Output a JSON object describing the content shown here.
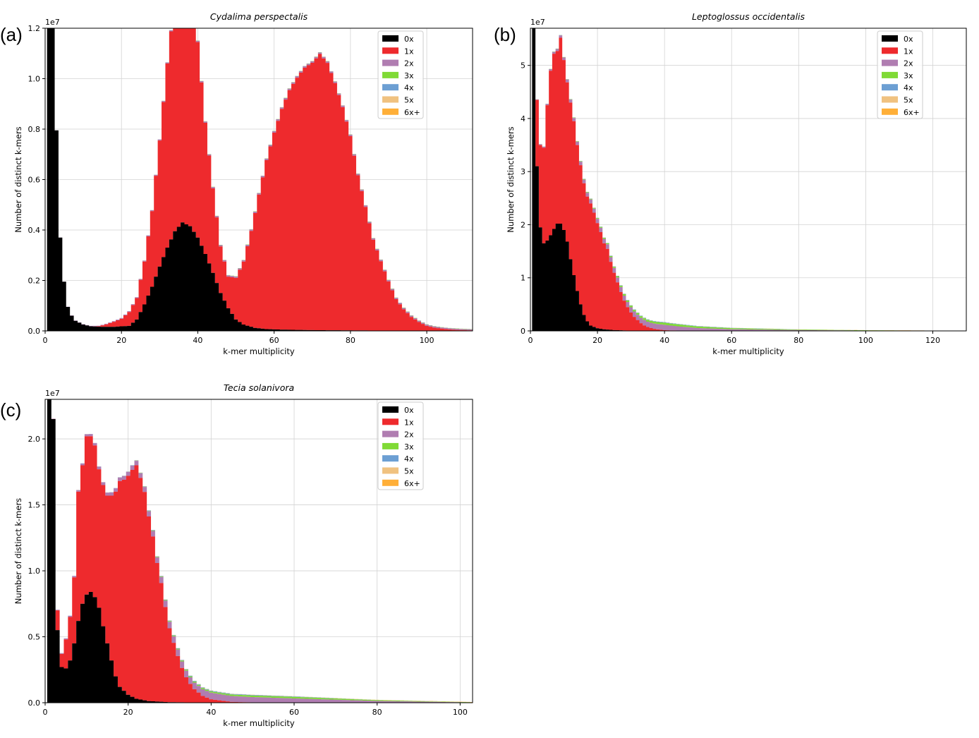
{
  "colors": {
    "layers": [
      "#000000",
      "#ee2a2d",
      "#b07db1",
      "#80da36",
      "#6c9fd3",
      "#f0c280",
      "#ffaf38"
    ],
    "grid": "#d3d3d3"
  },
  "chart_data": [
    {
      "panel_label": "(a)",
      "type": "area",
      "stacked": true,
      "title": "Cydalima perspectalis",
      "xlabel": "k-mer multiplicity",
      "ylabel": "Number of distinct k-mers",
      "y_offset_text": "1e7",
      "xlim": [
        0,
        112
      ],
      "ylim": [
        0,
        1.2
      ],
      "xticks": [
        0,
        20,
        40,
        60,
        80,
        100
      ],
      "xtick_labels": [
        "0",
        "20",
        "40",
        "60",
        "80",
        "100"
      ],
      "yticks": [
        0,
        0.2,
        0.4,
        0.6,
        0.8,
        1.0,
        1.2
      ],
      "ytick_labels": [
        "0.0",
        "0.2",
        "0.4",
        "0.6",
        "0.8",
        "1.0",
        "1.2"
      ],
      "grid": true,
      "legend_position": "top-right",
      "series": [
        {
          "name": "0x",
          "x": [
            1,
            2,
            3,
            4,
            5,
            6,
            7,
            8,
            10,
            12,
            15,
            18,
            20,
            22,
            24,
            26,
            28,
            30,
            32,
            34,
            36,
            38,
            40,
            42,
            44,
            46,
            48,
            50,
            52,
            55,
            58,
            62,
            66,
            70,
            80,
            90,
            100,
            112
          ],
          "values": [
            1.22,
            1.22,
            0.795,
            0.37,
            0.195,
            0.095,
            0.06,
            0.04,
            0.025,
            0.018,
            0.016,
            0.016,
            0.018,
            0.02,
            0.045,
            0.105,
            0.175,
            0.255,
            0.33,
            0.395,
            0.43,
            0.415,
            0.37,
            0.305,
            0.23,
            0.15,
            0.09,
            0.045,
            0.025,
            0.012,
            0.007,
            0.005,
            0.004,
            0.003,
            0.002,
            0.001,
            0.0,
            0.0
          ]
        },
        {
          "name": "1x",
          "x": [
            1,
            2,
            4,
            6,
            8,
            10,
            12,
            14,
            16,
            18,
            20,
            22,
            24,
            26,
            28,
            30,
            32,
            34,
            36,
            38,
            40,
            42,
            44,
            46,
            48,
            50,
            52,
            54,
            56,
            58,
            60,
            62,
            64,
            66,
            68,
            70,
            72,
            74,
            76,
            78,
            80,
            82,
            84,
            86,
            88,
            90,
            92,
            94,
            96,
            98,
            100,
            102,
            104,
            106,
            108,
            112
          ],
          "values": [
            0.0,
            0.0,
            0.0,
            0.0,
            0.0,
            0.0,
            0.0,
            0.002,
            0.01,
            0.02,
            0.03,
            0.055,
            0.085,
            0.17,
            0.3,
            0.5,
            0.73,
            0.92,
            1.0,
            0.96,
            0.775,
            0.52,
            0.335,
            0.185,
            0.125,
            0.165,
            0.25,
            0.38,
            0.53,
            0.67,
            0.78,
            0.875,
            0.95,
            1.0,
            1.04,
            1.06,
            1.095,
            1.06,
            0.98,
            0.885,
            0.77,
            0.615,
            0.49,
            0.36,
            0.275,
            0.195,
            0.125,
            0.085,
            0.055,
            0.035,
            0.02,
            0.013,
            0.009,
            0.006,
            0.004,
            0.002
          ]
        },
        {
          "name": "2x",
          "x": [
            0,
            20,
            40,
            60,
            80,
            100,
            112
          ],
          "values": [
            0.0,
            0.003,
            0.005,
            0.006,
            0.006,
            0.005,
            0.004
          ]
        },
        {
          "name": "3x",
          "x": [
            0,
            20,
            40,
            60,
            80,
            100,
            112
          ],
          "values": [
            0.0,
            0.0,
            0.001,
            0.001,
            0.001,
            0.001,
            0.001
          ]
        },
        {
          "name": "4x",
          "x": [
            0,
            20,
            40,
            60,
            80,
            100,
            112
          ],
          "values": [
            0.0,
            0.0,
            0.0,
            0.0,
            0.0,
            0.0,
            0.0
          ]
        },
        {
          "name": "5x",
          "x": [
            0,
            20,
            40,
            60,
            80,
            100,
            112
          ],
          "values": [
            0.0,
            0.0,
            0.0,
            0.0,
            0.0,
            0.0,
            0.0
          ]
        },
        {
          "name": "6x+",
          "x": [
            0,
            20,
            40,
            60,
            80,
            100,
            112
          ],
          "values": [
            0.0,
            0.0,
            0.0,
            0.0,
            0.0,
            0.0,
            0.0
          ]
        }
      ]
    },
    {
      "panel_label": "(b)",
      "type": "area",
      "stacked": true,
      "title": "Leptoglossus occidentalis",
      "xlabel": "k-mer multiplicity",
      "ylabel": "Number of distinct k-mers",
      "y_offset_text": "1e7",
      "xlim": [
        0,
        130
      ],
      "ylim": [
        0,
        5.7
      ],
      "xticks": [
        0,
        20,
        40,
        60,
        80,
        100,
        120
      ],
      "xtick_labels": [
        "0",
        "20",
        "40",
        "60",
        "80",
        "100",
        "120"
      ],
      "yticks": [
        0,
        1,
        2,
        3,
        4,
        5
      ],
      "ytick_labels": [
        "0",
        "1",
        "2",
        "3",
        "4",
        "5"
      ],
      "grid": true,
      "legend_position": "top-right",
      "series": [
        {
          "name": "0x",
          "x": [
            1,
            2,
            3,
            4,
            5,
            6,
            7,
            8,
            9,
            10,
            11,
            12,
            13,
            14,
            15,
            16,
            17,
            18,
            20,
            22,
            25,
            30,
            40,
            60,
            130
          ],
          "values": [
            5.75,
            3.1,
            1.95,
            1.65,
            1.7,
            1.8,
            1.92,
            2.02,
            2.02,
            1.9,
            1.68,
            1.35,
            1.05,
            0.75,
            0.5,
            0.3,
            0.18,
            0.1,
            0.05,
            0.03,
            0.015,
            0.005,
            0.002,
            0.0,
            0.0
          ]
        },
        {
          "name": "1x",
          "x": [
            1,
            2,
            3,
            4,
            5,
            6,
            7,
            8,
            9,
            10,
            11,
            12,
            13,
            14,
            15,
            16,
            17,
            18,
            19,
            20,
            21,
            22,
            23,
            24,
            25,
            26,
            27,
            28,
            29,
            30,
            31,
            32,
            33,
            34,
            35,
            36,
            37,
            38,
            40,
            42,
            45,
            50,
            60,
            80,
            100,
            130
          ],
          "values": [
            0.0,
            1.25,
            1.55,
            1.8,
            2.55,
            3.1,
            3.3,
            3.25,
            3.5,
            3.2,
            3.0,
            2.95,
            2.9,
            2.75,
            2.62,
            2.48,
            2.35,
            2.3,
            2.15,
            1.98,
            1.82,
            1.62,
            1.52,
            1.28,
            1.08,
            0.9,
            0.72,
            0.56,
            0.44,
            0.34,
            0.26,
            0.2,
            0.14,
            0.1,
            0.07,
            0.05,
            0.035,
            0.025,
            0.012,
            0.007,
            0.004,
            0.002,
            0.001,
            0.0,
            0.0,
            0.0
          ]
        },
        {
          "name": "2x",
          "x": [
            0,
            10,
            20,
            30,
            40,
            50,
            60,
            80,
            100,
            130
          ],
          "values": [
            0.0,
            0.05,
            0.08,
            0.1,
            0.1,
            0.05,
            0.03,
            0.015,
            0.006,
            0.0
          ]
        },
        {
          "name": "3x",
          "x": [
            0,
            10,
            20,
            30,
            40,
            50,
            60,
            80,
            100,
            130
          ],
          "values": [
            0.0,
            0.005,
            0.015,
            0.03,
            0.04,
            0.03,
            0.02,
            0.01,
            0.005,
            0.0
          ]
        },
        {
          "name": "4x",
          "x": [
            0,
            20,
            40,
            60,
            80,
            100,
            130
          ],
          "values": [
            0.0,
            0.005,
            0.01,
            0.005,
            0.002,
            0.0,
            0.0
          ]
        },
        {
          "name": "5x",
          "x": [
            0,
            40,
            60,
            80,
            100,
            130
          ],
          "values": [
            0.0,
            0.003,
            0.003,
            0.001,
            0.0,
            0.0
          ]
        },
        {
          "name": "6x+",
          "x": [
            0,
            60,
            90,
            110,
            130
          ],
          "values": [
            0.0,
            0.0,
            0.002,
            0.003,
            0.003
          ]
        }
      ]
    },
    {
      "panel_label": "(c)",
      "type": "area",
      "stacked": true,
      "title": "Tecia solanivora",
      "xlabel": "k-mer multiplicity",
      "ylabel": "Number of distinct k-mers",
      "y_offset_text": "1e7",
      "xlim": [
        0,
        103
      ],
      "ylim": [
        0,
        2.3
      ],
      "xticks": [
        0,
        20,
        40,
        60,
        80,
        100
      ],
      "xtick_labels": [
        "0",
        "20",
        "40",
        "60",
        "80",
        "100"
      ],
      "yticks": [
        0,
        0.5,
        1.0,
        1.5,
        2.0
      ],
      "ytick_labels": [
        "0.0",
        "0.5",
        "1.0",
        "1.5",
        "2.0"
      ],
      "grid": true,
      "legend_position": "top-right",
      "series": [
        {
          "name": "0x",
          "x": [
            1,
            2,
            3,
            4,
            5,
            6,
            7,
            8,
            9,
            10,
            11,
            12,
            13,
            14,
            15,
            16,
            17,
            18,
            20,
            22,
            25,
            30,
            40,
            103
          ],
          "values": [
            2.3,
            2.15,
            0.55,
            0.27,
            0.26,
            0.32,
            0.45,
            0.62,
            0.75,
            0.82,
            0.84,
            0.8,
            0.72,
            0.58,
            0.45,
            0.32,
            0.2,
            0.12,
            0.06,
            0.03,
            0.012,
            0.004,
            0.001,
            0.0
          ]
        },
        {
          "name": "1x",
          "x": [
            1,
            2,
            3,
            4,
            5,
            6,
            7,
            8,
            9,
            10,
            11,
            12,
            13,
            14,
            15,
            16,
            17,
            18,
            19,
            20,
            21,
            22,
            23,
            24,
            25,
            26,
            27,
            28,
            29,
            30,
            31,
            32,
            33,
            34,
            35,
            36,
            38,
            40,
            45,
            50,
            103
          ],
          "values": [
            0.0,
            0.0,
            0.15,
            0.1,
            0.22,
            0.33,
            0.5,
            0.98,
            1.05,
            1.2,
            1.18,
            1.15,
            1.05,
            1.07,
            1.12,
            1.25,
            1.4,
            1.56,
            1.6,
            1.66,
            1.72,
            1.77,
            1.68,
            1.58,
            1.4,
            1.25,
            1.05,
            0.9,
            0.72,
            0.56,
            0.45,
            0.35,
            0.26,
            0.19,
            0.14,
            0.1,
            0.05,
            0.025,
            0.005,
            0.002,
            0.0
          ]
        },
        {
          "name": "2x",
          "x": [
            0,
            10,
            20,
            30,
            40,
            50,
            60,
            80,
            103
          ],
          "values": [
            0.0,
            0.015,
            0.03,
            0.05,
            0.05,
            0.04,
            0.03,
            0.012,
            0.002
          ]
        },
        {
          "name": "3x",
          "x": [
            0,
            20,
            30,
            40,
            50,
            60,
            80,
            103
          ],
          "values": [
            0.0,
            0.0,
            0.005,
            0.01,
            0.012,
            0.012,
            0.006,
            0.001
          ]
        },
        {
          "name": "4x",
          "x": [
            0,
            20,
            40,
            60,
            80,
            103
          ],
          "values": [
            0.0,
            0.002,
            0.005,
            0.003,
            0.001,
            0.0
          ]
        },
        {
          "name": "5x",
          "x": [
            0,
            40,
            60,
            80,
            103
          ],
          "values": [
            0.0,
            0.002,
            0.002,
            0.001,
            0.0
          ]
        },
        {
          "name": "6x+",
          "x": [
            0,
            60,
            80,
            103
          ],
          "values": [
            0.0,
            0.0,
            0.001,
            0.002
          ]
        }
      ]
    }
  ]
}
